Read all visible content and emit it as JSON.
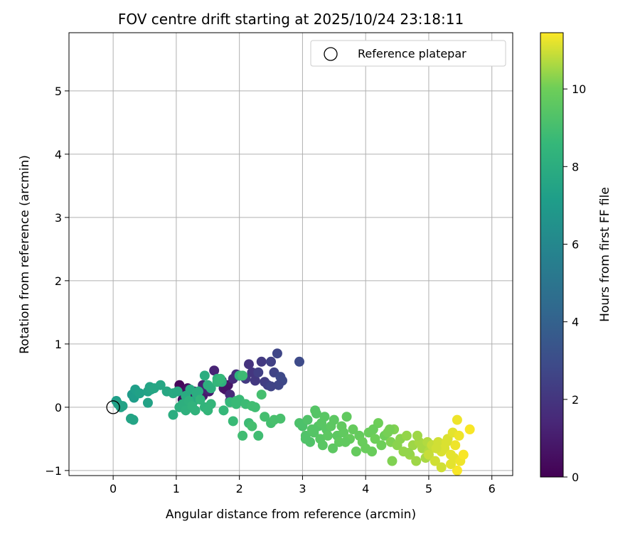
{
  "chart_data": {
    "type": "scatter",
    "title": "FOV centre drift starting at 2025/10/24 23:18:11",
    "xlabel": "Angular distance from reference (arcmin)",
    "ylabel": "Rotation from reference (arcmin)",
    "xlim": [
      -0.7,
      6.33
    ],
    "ylim": [
      -1.08,
      5.92
    ],
    "x_ticks": [
      "0",
      "1",
      "2",
      "3",
      "4",
      "5",
      "6"
    ],
    "y_ticks": [
      "−1",
      "0",
      "1",
      "2",
      "3",
      "4",
      "5"
    ],
    "grid": true,
    "legend": {
      "position": "top-right",
      "label": "Reference platepar"
    },
    "reference_point": {
      "x": 0,
      "y": 0
    },
    "colorbar": {
      "label": "Hours from first FF file",
      "range": [
        0,
        11.45
      ],
      "ticks": [
        "0",
        "2",
        "4",
        "6",
        "8",
        "10"
      ],
      "colormap": "viridis"
    },
    "series": [
      {
        "x": [
          1.05,
          1.08,
          1.12,
          1.18,
          1.22,
          1.28,
          1.35,
          1.42,
          1.48,
          1.52,
          1.75,
          1.82,
          1.78,
          1.1,
          1.15,
          1.25,
          1.32
        ],
        "y": [
          0.35,
          0.28,
          0.2,
          0.3,
          0.15,
          0.25,
          0.22,
          0.18,
          0.3,
          0.25,
          0.3,
          0.35,
          0.28,
          0.12,
          0.05,
          0.1,
          0.18
        ],
        "hours": [
          0.2,
          0.3,
          0.4,
          0.5,
          0.6,
          0.7,
          0.8,
          0.9,
          1.0,
          1.0,
          0.9,
          0.8,
          0.7,
          0.4,
          0.5,
          0.6,
          0.7
        ]
      },
      {
        "x": [
          1.6,
          1.72,
          1.85,
          1.9,
          1.95,
          2.0,
          2.15,
          2.2,
          2.25,
          2.35,
          2.4,
          2.45,
          2.5,
          2.55,
          2.6,
          2.65,
          2.68,
          2.62,
          2.95,
          2.5,
          2.3,
          2.1,
          1.85,
          1.42,
          1.5
        ],
        "y": [
          0.58,
          0.42,
          0.2,
          0.45,
          0.52,
          0.5,
          0.68,
          0.55,
          0.42,
          0.72,
          0.4,
          0.35,
          0.72,
          0.55,
          0.85,
          0.48,
          0.42,
          0.35,
          0.72,
          0.33,
          0.55,
          0.45,
          0.1,
          0.35,
          0.28
        ],
        "hours": [
          1.3,
          1.4,
          1.5,
          1.6,
          1.7,
          1.8,
          1.9,
          2.0,
          2.1,
          2.2,
          2.3,
          2.4,
          2.5,
          2.6,
          2.7,
          2.8,
          2.8,
          2.7,
          2.9,
          2.6,
          2.4,
          2.2,
          1.6,
          1.2,
          1.3
        ]
      },
      {
        "x": [
          0.05,
          0.08,
          0.12,
          0.15,
          0.3,
          0.33,
          0.35,
          0.42,
          0.55,
          0.58,
          0.6,
          0.65,
          0.75,
          0.85,
          0.95,
          1.02,
          1.15,
          1.22,
          1.28,
          1.32,
          1.35,
          1.45,
          1.5,
          1.55,
          1.65,
          1.72,
          2.0,
          0.32,
          0.28,
          0.55
        ],
        "y": [
          0.1,
          0.05,
          0.0,
          0.02,
          0.2,
          0.15,
          0.28,
          0.22,
          0.25,
          0.32,
          0.28,
          0.3,
          0.35,
          0.25,
          0.22,
          0.25,
          0.18,
          0.28,
          0.1,
          0.22,
          0.25,
          0.5,
          0.35,
          0.3,
          0.45,
          0.4,
          0.5,
          -0.2,
          -0.18,
          0.07
        ],
        "hours": [
          7.2,
          7.3,
          7.4,
          7.4,
          7.0,
          7.1,
          7.2,
          7.3,
          7.4,
          7.5,
          7.5,
          7.6,
          7.6,
          7.7,
          7.8,
          7.8,
          7.9,
          7.9,
          7.8,
          8.0,
          8.0,
          8.0,
          8.1,
          8.1,
          8.2,
          8.2,
          8.3,
          7.5,
          7.5,
          7.4
        ]
      },
      {
        "x": [
          0.95,
          1.05,
          1.1,
          1.15,
          1.2,
          1.25,
          1.3,
          1.38,
          1.45,
          1.5,
          1.55,
          1.65,
          1.7,
          1.75,
          1.85,
          1.9,
          1.95,
          2.0,
          2.05,
          2.1,
          2.15,
          2.2,
          2.25,
          2.3,
          2.35,
          2.4,
          2.5,
          2.55,
          2.65,
          2.05,
          2.2,
          1.95
        ],
        "y": [
          -0.12,
          0.0,
          0.05,
          -0.05,
          0.1,
          0.02,
          -0.05,
          0.12,
          0.0,
          -0.05,
          0.05,
          0.4,
          0.45,
          -0.05,
          0.08,
          -0.22,
          0.05,
          0.12,
          0.5,
          0.05,
          -0.25,
          0.02,
          0.0,
          -0.45,
          0.2,
          -0.15,
          -0.25,
          -0.2,
          -0.18,
          -0.45,
          -0.3,
          0.1
        ],
        "hours": [
          8.0,
          8.1,
          8.1,
          8.2,
          8.2,
          8.3,
          8.3,
          8.4,
          8.4,
          8.5,
          8.5,
          8.5,
          8.6,
          8.6,
          8.6,
          8.7,
          8.7,
          8.7,
          8.8,
          8.8,
          8.8,
          8.9,
          8.9,
          8.9,
          9.0,
          9.0,
          9.0,
          9.1,
          9.1,
          8.9,
          9.0,
          8.7
        ]
      },
      {
        "x": [
          2.95,
          3.0,
          3.05,
          3.08,
          3.12,
          3.15,
          3.18,
          3.22,
          3.25,
          3.28,
          3.3,
          3.32,
          3.35,
          3.38,
          3.4,
          3.45,
          3.5,
          3.55,
          3.58,
          3.62,
          3.65,
          3.7,
          3.75,
          3.8,
          3.85,
          3.9,
          3.95,
          4.0,
          4.05,
          4.1,
          4.15,
          4.2,
          4.25,
          4.3,
          3.05,
          3.2,
          3.48,
          3.68,
          4.12
        ],
        "y": [
          -0.25,
          -0.3,
          -0.45,
          -0.2,
          -0.55,
          -0.35,
          -0.4,
          -0.1,
          -0.3,
          -0.5,
          -0.25,
          -0.6,
          -0.15,
          -0.35,
          -0.45,
          -0.3,
          -0.2,
          -0.45,
          -0.55,
          -0.3,
          -0.4,
          -0.15,
          -0.5,
          -0.35,
          -0.7,
          -0.45,
          -0.55,
          -0.65,
          -0.4,
          -0.7,
          -0.5,
          -0.25,
          -0.6,
          -0.45,
          -0.5,
          -0.05,
          -0.65,
          -0.55,
          -0.35
        ],
        "hours": [
          9.2,
          9.2,
          9.3,
          9.3,
          9.3,
          9.4,
          9.4,
          9.4,
          9.4,
          9.5,
          9.5,
          9.5,
          9.5,
          9.5,
          9.6,
          9.6,
          9.6,
          9.6,
          9.7,
          9.7,
          9.7,
          9.7,
          9.8,
          9.8,
          9.8,
          9.8,
          9.9,
          9.9,
          9.9,
          9.9,
          10.0,
          10.0,
          10.0,
          10.0,
          9.3,
          9.4,
          9.6,
          9.7,
          9.9
        ]
      },
      {
        "x": [
          4.35,
          4.4,
          4.45,
          4.5,
          4.55,
          4.6,
          4.65,
          4.7,
          4.75,
          4.8,
          4.85,
          4.9,
          4.95,
          5.0,
          5.05,
          5.1,
          4.42,
          4.68,
          4.82,
          4.98,
          4.38
        ],
        "y": [
          -0.4,
          -0.55,
          -0.35,
          -0.6,
          -0.5,
          -0.7,
          -0.45,
          -0.75,
          -0.6,
          -0.85,
          -0.55,
          -0.65,
          -0.8,
          -0.7,
          -0.6,
          -0.85,
          -0.85,
          -0.72,
          -0.45,
          -0.55,
          -0.35
        ],
        "hours": [
          10.1,
          10.2,
          10.2,
          10.3,
          10.3,
          10.4,
          10.4,
          10.5,
          10.5,
          10.5,
          10.6,
          10.6,
          10.6,
          10.7,
          10.7,
          10.8,
          10.2,
          10.4,
          10.5,
          10.7,
          10.1
        ]
      },
      {
        "x": [
          5.0,
          5.05,
          5.1,
          5.15,
          5.2,
          5.25,
          5.3,
          5.35,
          5.38,
          5.4,
          5.42,
          5.45,
          5.48,
          5.5,
          5.55,
          5.65,
          5.45,
          5.2,
          5.28,
          5.12,
          5.35
        ],
        "y": [
          -0.75,
          -0.6,
          -0.85,
          -0.55,
          -0.95,
          -0.65,
          -0.5,
          -0.75,
          -0.4,
          -0.8,
          -0.6,
          -0.2,
          -0.45,
          -0.85,
          -0.75,
          -0.35,
          -1.0,
          -0.7,
          -0.55,
          -0.65,
          -0.9
        ],
        "hours": [
          10.9,
          10.9,
          11.0,
          11.0,
          11.0,
          11.1,
          11.1,
          11.2,
          11.2,
          11.2,
          11.3,
          11.3,
          11.3,
          11.3,
          11.4,
          11.4,
          11.4,
          11.1,
          11.1,
          11.0,
          11.2
        ]
      }
    ]
  }
}
